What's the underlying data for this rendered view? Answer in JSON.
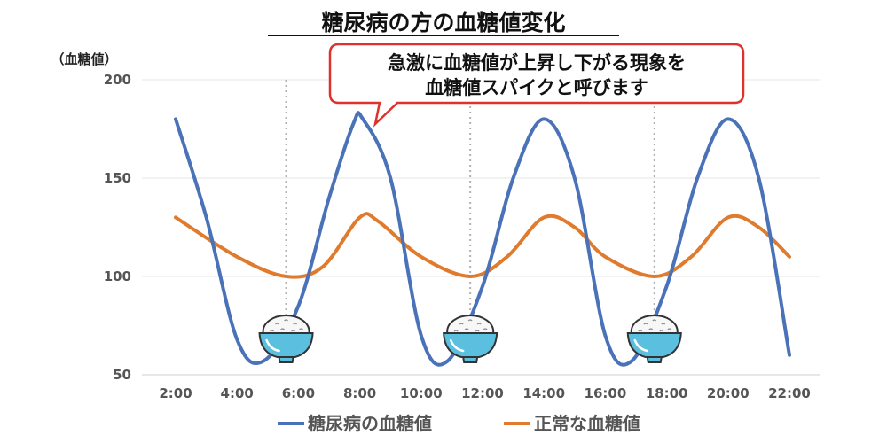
{
  "chart_data": {
    "type": "line",
    "title": "糖尿病の方の血糖値変化",
    "ylabel": "（血糖値）",
    "xlabel": "",
    "ylim": [
      50,
      200
    ],
    "yticks": [
      50,
      100,
      150,
      200
    ],
    "x_categories": [
      "2:00",
      "4:00",
      "6:00",
      "8:00",
      "10:00",
      "12:00",
      "14:00",
      "16:00",
      "18:00",
      "20:00",
      "22:00"
    ],
    "series": [
      {
        "name": "糖尿病の血糖値",
        "color": "#4a72b8",
        "points": [
          [
            0,
            180
          ],
          [
            0.5,
            130
          ],
          [
            1,
            68
          ],
          [
            1.43,
            57
          ],
          [
            2,
            85
          ],
          [
            2.5,
            140
          ],
          [
            2.9,
            178
          ],
          [
            3.05,
            180
          ],
          [
            3.5,
            150
          ],
          [
            4,
            70
          ],
          [
            4.43,
            57
          ],
          [
            5,
            95
          ],
          [
            5.5,
            150
          ],
          [
            6,
            180
          ],
          [
            6.5,
            150
          ],
          [
            7,
            70
          ],
          [
            7.43,
            57
          ],
          [
            8,
            95
          ],
          [
            8.5,
            150
          ],
          [
            9,
            180
          ],
          [
            9.5,
            150
          ],
          [
            10,
            60
          ]
        ]
      },
      {
        "name": "正常な血糖値",
        "color": "#e07b2e",
        "points": [
          [
            0,
            130
          ],
          [
            1,
            110
          ],
          [
            1.8,
            100
          ],
          [
            2.4,
            105
          ],
          [
            3,
            130
          ],
          [
            3.3,
            128
          ],
          [
            4,
            110
          ],
          [
            4.8,
            100
          ],
          [
            5.4,
            110
          ],
          [
            6,
            130
          ],
          [
            6.5,
            125
          ],
          [
            7,
            110
          ],
          [
            7.8,
            100
          ],
          [
            8.4,
            110
          ],
          [
            9,
            130
          ],
          [
            9.5,
            125
          ],
          [
            10,
            110
          ]
        ]
      }
    ],
    "meal_markers": [
      {
        "x": 1.8,
        "icon": "rice-bowl-icon"
      },
      {
        "x": 4.8,
        "icon": "rice-bowl-icon"
      },
      {
        "x": 7.8,
        "icon": "rice-bowl-icon"
      }
    ],
    "annotation": {
      "lines": [
        "急激に血糖値が上昇し下がる現象を",
        "血糖値スパイクと呼びます"
      ],
      "border_color": "#e0322c"
    },
    "grid": true,
    "legend_position": "bottom"
  }
}
